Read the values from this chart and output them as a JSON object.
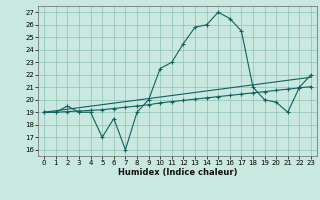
{
  "title": "",
  "xlabel": "Humidex (Indice chaleur)",
  "ylabel": "",
  "xlim": [
    -0.5,
    23.5
  ],
  "ylim": [
    15.5,
    27.5
  ],
  "yticks": [
    16,
    17,
    18,
    19,
    20,
    21,
    22,
    23,
    24,
    25,
    26,
    27
  ],
  "xticks": [
    0,
    1,
    2,
    3,
    4,
    5,
    6,
    7,
    8,
    9,
    10,
    11,
    12,
    13,
    14,
    15,
    16,
    17,
    18,
    19,
    20,
    21,
    22,
    23
  ],
  "bg_color": "#c8e8e0",
  "grid_color": "#90c0b8",
  "line_color": "#106060",
  "line1_x": [
    0,
    1,
    2,
    3,
    4,
    5,
    6,
    7,
    8,
    9,
    10,
    11,
    12,
    13,
    14,
    15,
    16,
    17,
    18,
    19,
    20,
    21,
    22,
    23
  ],
  "line1_y": [
    19,
    19,
    19.5,
    19,
    19,
    17,
    18.5,
    16,
    19,
    20,
    22.5,
    23,
    24.5,
    25.8,
    26,
    27,
    26.5,
    25.5,
    21,
    20,
    19.8,
    19,
    21,
    22
  ],
  "line2_x": [
    0,
    1,
    2,
    3,
    4,
    5,
    6,
    7,
    8,
    9,
    10,
    11,
    12,
    13,
    14,
    15,
    16,
    17,
    18,
    19,
    20,
    21,
    22,
    23
  ],
  "line2_y": [
    19.0,
    19.0,
    19.05,
    19.1,
    19.15,
    19.2,
    19.3,
    19.4,
    19.5,
    19.6,
    19.75,
    19.85,
    19.95,
    20.05,
    20.15,
    20.25,
    20.35,
    20.45,
    20.55,
    20.65,
    20.75,
    20.85,
    20.95,
    21.05
  ],
  "line3_x": [
    0,
    23
  ],
  "line3_y": [
    19.0,
    21.8
  ]
}
